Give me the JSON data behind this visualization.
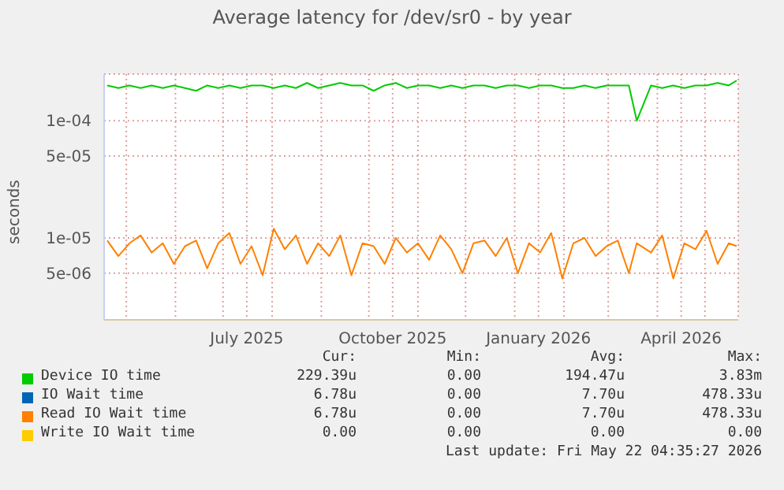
{
  "chart_data": {
    "type": "line",
    "title": "Average latency for /dev/sr0 - by year",
    "ylabel": "seconds",
    "log": "y",
    "grid": true,
    "legend": "bottom",
    "marker": "none",
    "line_style": "solid",
    "x": [
      "2025-04-19",
      "2025-04-26",
      "2025-05-03",
      "2025-05-10",
      "2025-05-17",
      "2025-05-24",
      "2025-05-31",
      "2025-06-07",
      "2025-06-14",
      "2025-06-21",
      "2025-06-28",
      "2025-07-05",
      "2025-07-12",
      "2025-07-19",
      "2025-07-26",
      "2025-08-02",
      "2025-08-09",
      "2025-08-16",
      "2025-08-23",
      "2025-08-30",
      "2025-09-06",
      "2025-09-13",
      "2025-09-20",
      "2025-09-27",
      "2025-10-04",
      "2025-10-11",
      "2025-10-18",
      "2025-10-25",
      "2025-11-01",
      "2025-11-08",
      "2025-11-15",
      "2025-11-22",
      "2025-11-29",
      "2025-12-06",
      "2025-12-13",
      "2025-12-20",
      "2025-12-27",
      "2026-01-03",
      "2026-01-10",
      "2026-01-17",
      "2026-01-24",
      "2026-01-31",
      "2026-02-07",
      "2026-02-14",
      "2026-02-21",
      "2026-02-28",
      "2026-03-07",
      "2026-03-14",
      "2026-03-19",
      "2026-03-28",
      "2026-04-04",
      "2026-04-11",
      "2026-04-18",
      "2026-04-25",
      "2026-05-02",
      "2026-05-09",
      "2026-05-16",
      "2026-05-21"
    ],
    "xlim": [
      "2025-04-17",
      "2026-05-22"
    ],
    "xticks": [
      {
        "value": "2025-05-01",
        "label": null
      },
      {
        "value": "2025-06-01",
        "label": null
      },
      {
        "value": "2025-07-01",
        "label": null
      },
      {
        "value": "2025-07-16",
        "label": "July 2025"
      },
      {
        "value": "2025-08-01",
        "label": null
      },
      {
        "value": "2025-09-01",
        "label": null
      },
      {
        "value": "2025-10-01",
        "label": null
      },
      {
        "value": "2025-10-16",
        "label": "October 2025"
      },
      {
        "value": "2025-11-01",
        "label": null
      },
      {
        "value": "2025-12-01",
        "label": null
      },
      {
        "value": "2026-01-01",
        "label": null
      },
      {
        "value": "2026-01-16",
        "label": "January 2026"
      },
      {
        "value": "2026-02-01",
        "label": null
      },
      {
        "value": "2026-03-01",
        "label": null
      },
      {
        "value": "2026-04-01",
        "label": null
      },
      {
        "value": "2026-04-16",
        "label": "April 2026"
      },
      {
        "value": "2026-05-01",
        "label": null
      }
    ],
    "ylim": [
      2e-06,
      0.00025
    ],
    "yticks": [
      {
        "value": 5e-06,
        "label": "5e-06"
      },
      {
        "value": 1e-05,
        "label": "1e-05"
      },
      {
        "value": 5e-05,
        "label": "5e-05"
      },
      {
        "value": 0.0001,
        "label": "1e-04"
      }
    ],
    "series": [
      {
        "name": "Device IO time",
        "color": "#00cc00",
        "values": [
          0.0002,
          0.00019,
          0.0002,
          0.00019,
          0.0002,
          0.00019,
          0.0002,
          0.00019,
          0.00018,
          0.0002,
          0.00019,
          0.0002,
          0.00019,
          0.0002,
          0.0002,
          0.00019,
          0.0002,
          0.00019,
          0.00021,
          0.00019,
          0.0002,
          0.00021,
          0.0002,
          0.0002,
          0.00018,
          0.0002,
          0.00021,
          0.00019,
          0.0002,
          0.0002,
          0.00019,
          0.0002,
          0.00019,
          0.0002,
          0.0002,
          0.00019,
          0.0002,
          0.0002,
          0.00019,
          0.0002,
          0.0002,
          0.00019,
          0.00019,
          0.0002,
          0.00019,
          0.0002,
          0.0002,
          0.0002,
          0.0001,
          0.0002,
          0.00019,
          0.0002,
          0.00019,
          0.0002,
          0.0002,
          0.00021,
          0.0002,
          0.00022
        ]
      },
      {
        "name": "IO Wait time",
        "color": "#0066b3",
        "values": [
          null,
          null,
          null,
          null,
          null,
          null,
          null,
          null,
          null,
          null,
          null,
          null,
          null,
          null,
          null,
          null,
          null,
          null,
          null,
          null,
          null,
          null,
          null,
          null,
          null,
          null,
          null,
          null,
          null,
          null,
          null,
          null,
          null,
          null,
          null,
          null,
          null,
          null,
          null,
          null,
          null,
          null,
          null,
          null,
          null,
          null,
          null,
          null,
          null,
          null,
          null,
          null,
          null,
          null,
          null,
          null,
          null,
          null
        ]
      },
      {
        "name": "Read IO Wait time",
        "color": "#ff8000",
        "values": [
          9.5e-06,
          7e-06,
          9e-06,
          1.05e-05,
          7.5e-06,
          9e-06,
          6e-06,
          8.5e-06,
          9.5e-06,
          5.5e-06,
          9e-06,
          1.1e-05,
          6e-06,
          8.5e-06,
          4.8e-06,
          1.2e-05,
          8e-06,
          1.05e-05,
          6e-06,
          9e-06,
          7e-06,
          1.05e-05,
          4.8e-06,
          9e-06,
          8.5e-06,
          6e-06,
          1e-05,
          7.5e-06,
          9e-06,
          6.5e-06,
          1.05e-05,
          8e-06,
          5e-06,
          9e-06,
          9.5e-06,
          7e-06,
          1e-05,
          5e-06,
          9e-06,
          7.5e-06,
          1.1e-05,
          4.5e-06,
          9e-06,
          1e-05,
          7e-06,
          8.5e-06,
          9.5e-06,
          5e-06,
          9e-06,
          7.5e-06,
          1.05e-05,
          4.5e-06,
          9e-06,
          8e-06,
          1.15e-05,
          6e-06,
          9e-06,
          8.5e-06
        ]
      },
      {
        "name": "Write IO Wait time",
        "color": "#ffcc00",
        "values": [
          null,
          null,
          null,
          null,
          null,
          null,
          null,
          null,
          null,
          null,
          null,
          null,
          null,
          null,
          null,
          null,
          null,
          null,
          null,
          null,
          null,
          null,
          null,
          null,
          null,
          null,
          null,
          null,
          null,
          null,
          null,
          null,
          null,
          null,
          null,
          null,
          null,
          null,
          null,
          null,
          null,
          null,
          null,
          null,
          null,
          null,
          null,
          null,
          null,
          null,
          null,
          null,
          null,
          null,
          null,
          null,
          null,
          null
        ]
      }
    ],
    "annotations": [
      "Cur:",
      "Min:",
      "Avg:",
      "Max:",
      "229.39u",
      "0.00",
      "194.47u",
      "3.83m",
      "6.78u",
      "0.00",
      "7.70u",
      "478.33u",
      "6.78u",
      "0.00",
      "7.70u",
      "478.33u",
      "0.00",
      "0.00",
      "0.00",
      "0.00",
      "Last update: Fri May 22 04:35:27 2026"
    ]
  }
}
